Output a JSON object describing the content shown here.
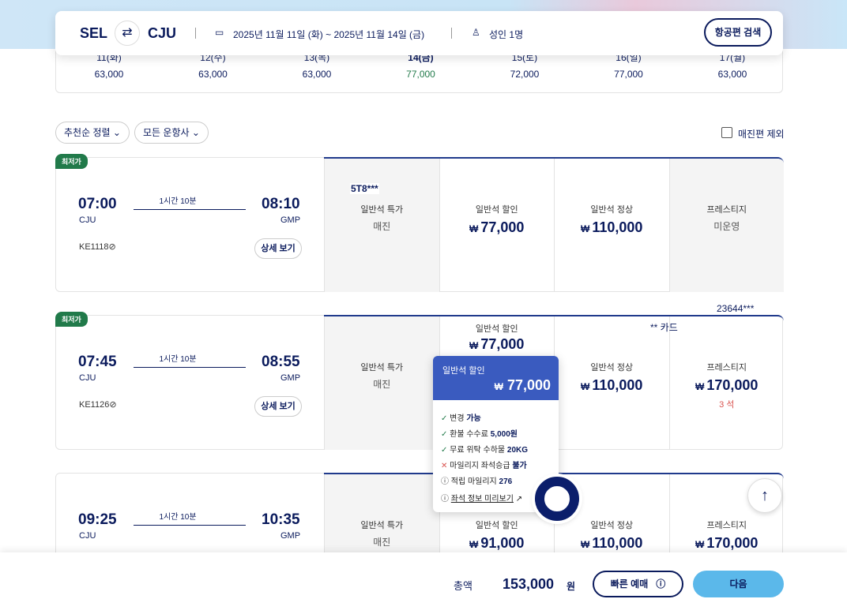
{
  "search": {
    "from": "SEL",
    "to": "CJU",
    "swap_icon": "swap-arrows-icon",
    "dates": "2025년 11월 11일 (화) ~ 2025년 11월 14일 (금)",
    "passengers": "성인 1명",
    "search_button": "항공편 검색"
  },
  "date_strip": [
    {
      "day": "11(화)",
      "price": "63,000"
    },
    {
      "day": "12(수)",
      "price": "63,000"
    },
    {
      "day": "13(목)",
      "price": "63,000"
    },
    {
      "day": "14(금)",
      "price": "77,000",
      "selected": true
    },
    {
      "day": "15(토)",
      "price": "72,000"
    },
    {
      "day": "16(일)",
      "price": "77,000"
    },
    {
      "day": "17(월)",
      "price": "63,000"
    }
  ],
  "filters": {
    "sort": "추천순 정렬",
    "airline": "모든 운항사",
    "exclude_soldout": "매진편 제외",
    "exclude_checked": false
  },
  "colors": {
    "navy": "#0a1a5c",
    "accent_blue": "#3a5bbf",
    "lowest_badge": "#217a4a",
    "next_button": "#5bb8ea",
    "seat_warning": "#d9534f"
  },
  "flights": [
    {
      "badge": "최저가",
      "dep": "07:00",
      "dep_ap": "CJU",
      "arr": "08:10",
      "arr_ap": "GMP",
      "duration": "1시간 10분",
      "flight_no": "KE1118",
      "detail": "상세 보기",
      "overlay": "5T8***",
      "fares": [
        {
          "label": "일반석 특가",
          "status": "매진"
        },
        {
          "label": "일반석 할인",
          "price": "77,000"
        },
        {
          "label": "일반석 정상",
          "price": "110,000"
        },
        {
          "label": "프레스티지",
          "status": "미운영"
        }
      ]
    },
    {
      "badge": "최저가",
      "dep": "07:45",
      "dep_ap": "CJU",
      "arr": "08:55",
      "arr_ap": "GMP",
      "duration": "1시간 10분",
      "flight_no": "KE1126",
      "detail": "상세 보기",
      "overlay": "23644***",
      "overlay2": "** 카드",
      "fares": [
        {
          "label": "일반석 특가",
          "status": "매진"
        },
        {
          "label": "일반석 할인",
          "price": "77,000"
        },
        {
          "label": "일반석 정상",
          "price": "110,000"
        },
        {
          "label": "프레스티지",
          "price": "170,000",
          "seats": "3 석"
        }
      ]
    },
    {
      "dep": "09:25",
      "dep_ap": "CJU",
      "arr": "10:35",
      "arr_ap": "GMP",
      "duration": "1시간 10분",
      "fares": [
        {
          "label": "일반석 특가",
          "status": "매진"
        },
        {
          "label": "일반석 할인",
          "price": "91,000"
        },
        {
          "label": "일반석 정상",
          "price": "110,000"
        },
        {
          "label": "프레스티지",
          "price": "170,000"
        }
      ]
    }
  ],
  "currency": "₩",
  "tooltip": {
    "title": "일반석 할인",
    "price": "77,000",
    "rows": [
      {
        "icon": "check",
        "text": "변경 ",
        "bold": "가능"
      },
      {
        "icon": "check",
        "text": "환불 수수료 ",
        "bold": "5,000원"
      },
      {
        "icon": "check",
        "text": "무료 위탁 수하물 ",
        "bold": "20KG"
      },
      {
        "icon": "x",
        "text": "마일리지 좌석승급 ",
        "bold": "불가"
      },
      {
        "icon": "info",
        "text": "적립 마일리지 ",
        "bold": "276"
      }
    ],
    "link": "좌석 정보 미리보기"
  },
  "footer": {
    "total_label": "총액",
    "total": "153,000",
    "unit": "원",
    "quick_button": "빠른 예매",
    "next_button": "다음"
  }
}
